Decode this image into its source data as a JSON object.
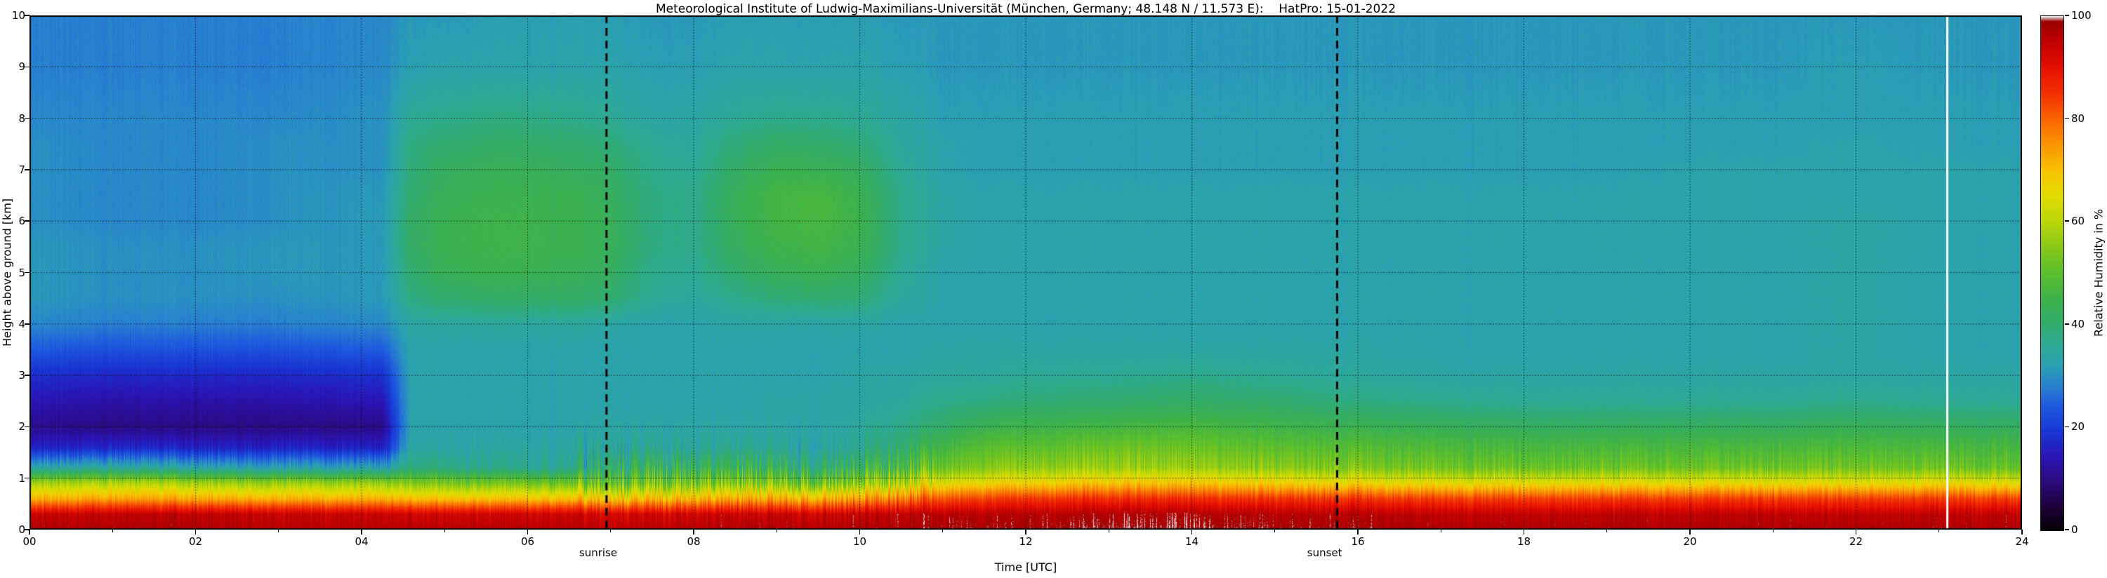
{
  "title": "Meteorological Institute of Ludwig-Maximilians-Universität (München, Germany; 48.148 N / 11.573 E):    HatPro: 15-01-2022",
  "x_axis": {
    "label": "Time [UTC]",
    "ticks": [
      "00",
      "02",
      "04",
      "06",
      "08",
      "10",
      "12",
      "14",
      "16",
      "18",
      "20",
      "22",
      "24"
    ],
    "tick_values": [
      0,
      2,
      4,
      6,
      8,
      10,
      12,
      14,
      16,
      18,
      20,
      22,
      24
    ],
    "minor_tick_values": [
      1,
      3,
      5,
      7,
      9,
      11,
      13,
      15,
      17,
      19,
      21,
      23
    ]
  },
  "y_axis": {
    "label": "Height above ground [km]",
    "ticks": [
      "0",
      "1",
      "2",
      "3",
      "4",
      "5",
      "6",
      "7",
      "8",
      "9",
      "10"
    ],
    "tick_values": [
      0,
      1,
      2,
      3,
      4,
      5,
      6,
      7,
      8,
      9,
      10
    ]
  },
  "colorbar": {
    "label": "Relative Humidity in %",
    "ticks": [
      "0",
      "20",
      "40",
      "60",
      "80",
      "100"
    ],
    "tick_values": [
      0,
      20,
      40,
      60,
      80,
      100
    ]
  },
  "annotations": {
    "sunrise": {
      "label": "sunrise",
      "t": 6.85,
      "line_t": 6.95
    },
    "sunset": {
      "label": "sunset",
      "t": 15.6,
      "line_t": 15.75
    },
    "data_gap_line_t": 23.1
  },
  "colormap": [
    [
      0,
      "#050005"
    ],
    [
      4,
      "#1a0033"
    ],
    [
      9,
      "#2b0a78"
    ],
    [
      14,
      "#2a14b4"
    ],
    [
      19,
      "#1935d2"
    ],
    [
      24,
      "#1e58de"
    ],
    [
      28,
      "#2880d0"
    ],
    [
      32,
      "#2aa0b2"
    ],
    [
      36,
      "#2eaa96"
    ],
    [
      40,
      "#32ac6e"
    ],
    [
      45,
      "#3eb24b"
    ],
    [
      50,
      "#5abe2d"
    ],
    [
      55,
      "#87c819"
    ],
    [
      60,
      "#b9d70a"
    ],
    [
      65,
      "#e1dc00"
    ],
    [
      70,
      "#f8c300"
    ],
    [
      75,
      "#fa9600"
    ],
    [
      80,
      "#f86400"
    ],
    [
      85,
      "#f23000"
    ],
    [
      90,
      "#e41000"
    ],
    [
      95,
      "#c20000"
    ],
    [
      99,
      "#9a0000"
    ],
    [
      100,
      "#e8e8e8"
    ]
  ],
  "chart_data": {
    "type": "heatmap",
    "title": "Meteorological Institute of Ludwig-Maximilians-Universität (München, Germany; 48.148 N / 11.573 E):    HatPro: 15-01-2022",
    "xlabel": "Time [UTC]",
    "ylabel": "Height above ground [km]",
    "zlabel": "Relative Humidity in %",
    "xlim": [
      0,
      24
    ],
    "ylim": [
      0,
      10
    ],
    "zlim": [
      0,
      100
    ],
    "grid": true,
    "x": [
      0,
      1,
      2,
      3,
      4,
      4.25,
      4.6,
      5,
      5.5,
      6,
      6.5,
      7,
      7.5,
      8,
      8.5,
      9,
      9.5,
      10,
      10.5,
      11,
      11.5,
      12,
      13,
      14,
      15,
      16,
      17,
      18,
      19,
      20,
      21,
      22,
      23,
      24
    ],
    "heights": [
      0,
      0.3,
      0.6,
      0.9,
      1.2,
      1.6,
      2,
      2.5,
      3,
      3.5,
      4,
      4.5,
      5,
      5.5,
      6,
      6.5,
      7,
      7.5,
      8,
      9,
      10
    ],
    "values": [
      [
        97,
        97,
        97,
        96,
        96,
        96,
        96,
        96,
        96,
        96,
        96,
        95,
        96,
        96,
        97,
        97,
        97,
        97,
        97,
        98,
        98,
        98,
        99,
        99,
        98,
        98,
        97,
        97,
        97,
        97,
        97,
        97,
        97,
        97
      ],
      [
        94,
        95,
        95,
        94,
        94,
        94,
        93,
        93,
        93,
        93,
        93,
        92,
        93,
        93,
        94,
        94,
        94,
        94,
        95,
        96,
        96,
        96,
        97,
        97,
        96,
        96,
        95,
        95,
        95,
        95,
        95,
        95,
        95,
        95
      ],
      [
        72,
        74,
        73,
        72,
        72,
        72,
        70,
        70,
        70,
        70,
        70,
        68,
        71,
        71,
        73,
        73,
        73,
        74,
        77,
        82,
        84,
        85,
        86,
        86,
        85,
        85,
        84,
        84,
        84,
        84,
        84,
        84,
        84,
        84
      ],
      [
        58,
        60,
        58,
        57,
        57,
        56,
        54,
        54,
        53,
        53,
        52,
        50,
        54,
        53,
        55,
        55,
        54,
        55,
        59,
        65,
        67,
        68,
        70,
        70,
        68,
        67,
        66,
        66,
        66,
        66,
        66,
        66,
        66,
        66
      ],
      [
        34,
        36,
        34,
        33,
        33,
        32,
        38,
        38,
        37,
        36,
        36,
        40,
        44,
        42,
        44,
        43,
        42,
        43,
        46,
        52,
        55,
        56,
        57,
        57,
        55,
        54,
        53,
        52,
        52,
        52,
        52,
        53,
        52,
        52
      ],
      [
        16,
        17,
        16,
        16,
        16,
        15,
        34,
        34,
        34,
        34,
        34,
        35,
        36,
        35,
        36,
        36,
        35,
        36,
        40,
        46,
        50,
        50,
        52,
        52,
        50,
        49,
        48,
        47,
        47,
        47,
        47,
        48,
        47,
        47
      ],
      [
        11,
        10,
        10,
        10,
        10,
        10,
        33,
        33,
        33,
        33,
        33,
        34,
        34,
        34,
        34,
        34,
        34,
        35,
        37,
        41,
        44,
        45,
        46,
        47,
        45,
        44,
        43,
        42,
        42,
        42,
        42,
        43,
        42,
        42
      ],
      [
        14,
        13,
        13,
        13,
        14,
        14,
        33,
        33,
        33,
        33,
        33,
        33,
        33,
        33,
        33,
        34,
        34,
        34,
        35,
        37,
        38,
        39,
        40,
        41,
        40,
        38,
        37,
        36,
        36,
        36,
        36,
        37,
        36,
        36
      ],
      [
        18,
        17,
        17,
        17,
        18,
        18,
        33,
        33,
        33,
        33,
        33,
        33,
        33,
        33,
        33,
        33,
        33,
        34,
        34,
        35,
        35,
        36,
        36,
        37,
        36,
        35,
        34,
        34,
        34,
        34,
        34,
        34,
        34,
        34
      ],
      [
        24,
        23,
        23,
        23,
        24,
        24,
        33,
        33,
        33,
        33,
        33,
        33,
        33,
        33,
        33,
        33,
        33,
        33,
        33,
        34,
        34,
        34,
        34,
        34,
        34,
        34,
        33,
        33,
        33,
        33,
        33,
        34,
        33,
        33
      ],
      [
        29,
        28,
        28,
        28,
        29,
        29,
        34,
        35,
        35,
        35,
        35,
        34,
        33,
        33,
        34,
        34,
        34,
        34,
        33,
        33,
        33,
        33,
        33,
        33,
        33,
        33,
        33,
        33,
        33,
        33,
        33,
        34,
        33,
        33
      ],
      [
        31,
        30,
        30,
        30,
        31,
        31,
        38,
        40,
        41,
        41,
        41,
        40,
        36,
        35,
        37,
        39,
        40,
        39,
        35,
        33,
        33,
        33,
        33,
        33,
        33,
        33,
        33,
        33,
        33,
        33,
        33,
        34,
        33,
        33
      ],
      [
        31,
        30,
        30,
        31,
        31,
        31,
        40,
        43,
        44,
        44,
        43,
        42,
        37,
        36,
        40,
        43,
        44,
        42,
        36,
        33,
        33,
        33,
        33,
        33,
        33,
        33,
        33,
        33,
        33,
        33,
        33,
        34,
        33,
        33
      ],
      [
        31,
        30,
        30,
        31,
        31,
        31,
        41,
        44,
        45,
        45,
        44,
        43,
        38,
        37,
        42,
        45,
        46,
        44,
        37,
        34,
        33,
        33,
        33,
        33,
        33,
        33,
        33,
        33,
        33,
        33,
        33,
        34,
        33,
        33
      ],
      [
        30,
        29,
        29,
        30,
        31,
        31,
        41,
        44,
        45,
        45,
        44,
        43,
        38,
        37,
        43,
        46,
        47,
        45,
        37,
        34,
        33,
        33,
        33,
        33,
        33,
        33,
        33,
        33,
        33,
        33,
        33,
        34,
        33,
        33
      ],
      [
        30,
        29,
        29,
        30,
        31,
        31,
        40,
        43,
        44,
        44,
        44,
        42,
        38,
        37,
        43,
        46,
        47,
        44,
        37,
        34,
        33,
        33,
        33,
        33,
        33,
        33,
        33,
        33,
        33,
        33,
        33,
        33,
        33,
        33
      ],
      [
        30,
        29,
        29,
        30,
        30,
        30,
        39,
        42,
        43,
        43,
        42,
        41,
        37,
        36,
        41,
        44,
        44,
        42,
        36,
        33,
        32,
        32,
        32,
        32,
        32,
        32,
        32,
        32,
        32,
        33,
        33,
        33,
        33,
        33
      ],
      [
        30,
        29,
        29,
        30,
        30,
        30,
        38,
        40,
        41,
        41,
        40,
        39,
        36,
        35,
        39,
        41,
        41,
        39,
        35,
        33,
        32,
        32,
        32,
        32,
        32,
        32,
        32,
        32,
        32,
        32,
        32,
        33,
        32,
        32
      ],
      [
        29,
        29,
        29,
        29,
        30,
        30,
        36,
        37,
        38,
        38,
        37,
        36,
        34,
        34,
        36,
        37,
        37,
        36,
        34,
        32,
        32,
        32,
        32,
        32,
        32,
        32,
        32,
        32,
        32,
        32,
        32,
        32,
        32,
        32
      ],
      [
        28,
        28,
        28,
        28,
        29,
        29,
        32,
        33,
        33,
        33,
        33,
        33,
        32,
        32,
        33,
        33,
        33,
        33,
        32,
        31,
        31,
        31,
        31,
        31,
        31,
        31,
        31,
        31,
        31,
        31,
        31,
        32,
        31,
        31
      ],
      [
        28,
        28,
        28,
        28,
        29,
        29,
        31,
        31,
        32,
        32,
        32,
        32,
        31,
        31,
        32,
        32,
        32,
        32,
        31,
        31,
        31,
        31,
        31,
        31,
        31,
        31,
        31,
        31,
        31,
        31,
        31,
        31,
        31,
        31
      ]
    ]
  }
}
